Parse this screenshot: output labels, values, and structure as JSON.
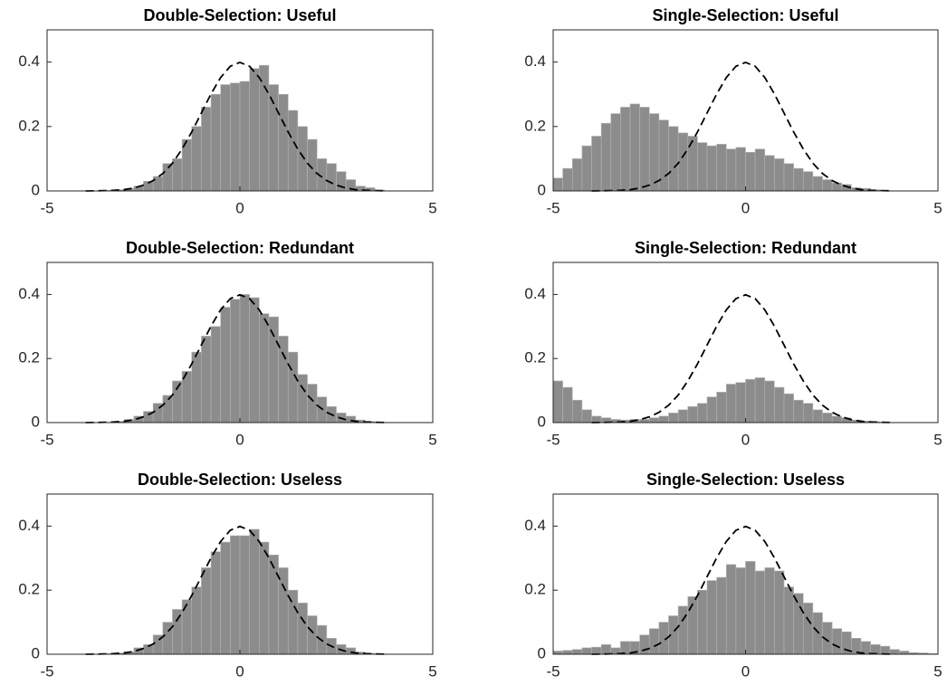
{
  "chart_data": [
    {
      "type": "histogram",
      "title": "Double-Selection: Useful",
      "color": "#8c8c8c",
      "bins": [
        -5,
        -4.75,
        -4.5,
        -4.25,
        -4,
        -3.75,
        -3.5,
        -3.25,
        -3,
        -2.75,
        -2.5,
        -2.25,
        -2,
        -1.75,
        -1.5,
        -1.25,
        -1,
        -0.75,
        -0.5,
        -0.25,
        0,
        0.25,
        0.5,
        0.75,
        1,
        1.25,
        1.5,
        1.75,
        2,
        2.25,
        2.5,
        2.75,
        3,
        3.25,
        3.5,
        3.75,
        4,
        4.25,
        4.5,
        4.75,
        5
      ],
      "values": [
        0,
        0,
        0,
        0,
        0,
        0,
        0.002,
        0.004,
        0.008,
        0.015,
        0.03,
        0.045,
        0.085,
        0.1,
        0.16,
        0.2,
        0.26,
        0.3,
        0.33,
        0.335,
        0.34,
        0.38,
        0.39,
        0.33,
        0.3,
        0.25,
        0.2,
        0.16,
        0.1,
        0.085,
        0.06,
        0.035,
        0.015,
        0.01,
        0.003,
        0,
        0,
        0,
        0,
        0
      ],
      "line": {
        "color": "#000000",
        "dashed": true,
        "x": [
          -4,
          -3.75,
          -3.5,
          -3.25,
          -3,
          -2.75,
          -2.5,
          -2.25,
          -2,
          -1.75,
          -1.5,
          -1.25,
          -1,
          -0.75,
          -0.5,
          -0.25,
          0,
          0.25,
          0.5,
          0.75,
          1,
          1.25,
          1.5,
          1.75,
          2,
          2.25,
          2.5,
          2.75,
          3,
          3.25,
          3.5,
          3.75
        ],
        "values": [
          0.0001,
          0.0004,
          0.001,
          0.002,
          0.004,
          0.009,
          0.018,
          0.032,
          0.054,
          0.086,
          0.13,
          0.183,
          0.242,
          0.301,
          0.352,
          0.387,
          0.399,
          0.387,
          0.352,
          0.301,
          0.242,
          0.183,
          0.13,
          0.086,
          0.054,
          0.032,
          0.018,
          0.009,
          0.004,
          0.002,
          0.001,
          0.0004
        ]
      },
      "xlim": [
        -5,
        5
      ],
      "xticks": [
        -5,
        0,
        5
      ],
      "ylim": [
        0,
        0.5
      ],
      "yticks": [
        0,
        0.2,
        0.4
      ]
    },
    {
      "type": "histogram",
      "title": "Single-Selection: Useful",
      "color": "#8c8c8c",
      "bins": [
        -5,
        -4.75,
        -4.5,
        -4.25,
        -4,
        -3.75,
        -3.5,
        -3.25,
        -3,
        -2.75,
        -2.5,
        -2.25,
        -2,
        -1.75,
        -1.5,
        -1.25,
        -1,
        -0.75,
        -0.5,
        -0.25,
        0,
        0.25,
        0.5,
        0.75,
        1,
        1.25,
        1.5,
        1.75,
        2,
        2.25,
        2.5,
        2.75,
        3,
        3.25,
        3.5,
        3.75,
        4,
        4.25,
        4.5,
        4.75,
        5
      ],
      "values": [
        0.04,
        0.07,
        0.1,
        0.14,
        0.17,
        0.21,
        0.24,
        0.26,
        0.27,
        0.26,
        0.24,
        0.22,
        0.2,
        0.18,
        0.17,
        0.15,
        0.14,
        0.145,
        0.13,
        0.135,
        0.12,
        0.13,
        0.11,
        0.1,
        0.085,
        0.07,
        0.06,
        0.045,
        0.035,
        0.025,
        0.02,
        0.01,
        0.008,
        0.004,
        0.002,
        0,
        0,
        0,
        0,
        0
      ],
      "line": {
        "color": "#000000",
        "dashed": true,
        "x": [
          -4,
          -3.75,
          -3.5,
          -3.25,
          -3,
          -2.75,
          -2.5,
          -2.25,
          -2,
          -1.75,
          -1.5,
          -1.25,
          -1,
          -0.75,
          -0.5,
          -0.25,
          0,
          0.25,
          0.5,
          0.75,
          1,
          1.25,
          1.5,
          1.75,
          2,
          2.25,
          2.5,
          2.75,
          3,
          3.25,
          3.5,
          3.75
        ],
        "values": [
          0.0001,
          0.0004,
          0.001,
          0.002,
          0.004,
          0.009,
          0.018,
          0.032,
          0.054,
          0.086,
          0.13,
          0.183,
          0.242,
          0.301,
          0.352,
          0.387,
          0.399,
          0.387,
          0.352,
          0.301,
          0.242,
          0.183,
          0.13,
          0.086,
          0.054,
          0.032,
          0.018,
          0.009,
          0.004,
          0.002,
          0.001,
          0.0004
        ]
      },
      "xlim": [
        -5,
        5
      ],
      "xticks": [
        -5,
        0,
        5
      ],
      "ylim": [
        0,
        0.5
      ],
      "yticks": [
        0,
        0.2,
        0.4
      ]
    },
    {
      "type": "histogram",
      "title": "Double-Selection: Redundant",
      "color": "#8c8c8c",
      "bins": [
        -5,
        -4.75,
        -4.5,
        -4.25,
        -4,
        -3.75,
        -3.5,
        -3.25,
        -3,
        -2.75,
        -2.5,
        -2.25,
        -2,
        -1.75,
        -1.5,
        -1.25,
        -1,
        -0.75,
        -0.5,
        -0.25,
        0,
        0.25,
        0.5,
        0.75,
        1,
        1.25,
        1.5,
        1.75,
        2,
        2.25,
        2.5,
        2.75,
        3,
        3.25,
        3.5,
        3.75,
        4,
        4.25,
        4.5,
        4.75,
        5
      ],
      "values": [
        0,
        0,
        0,
        0,
        0,
        0,
        0.001,
        0.004,
        0.01,
        0.02,
        0.035,
        0.06,
        0.085,
        0.13,
        0.16,
        0.22,
        0.27,
        0.3,
        0.36,
        0.385,
        0.4,
        0.39,
        0.34,
        0.33,
        0.27,
        0.22,
        0.15,
        0.12,
        0.08,
        0.05,
        0.03,
        0.02,
        0.008,
        0.004,
        0.001,
        0,
        0,
        0,
        0,
        0
      ],
      "line": {
        "color": "#000000",
        "dashed": true,
        "x": [
          -4,
          -3.75,
          -3.5,
          -3.25,
          -3,
          -2.75,
          -2.5,
          -2.25,
          -2,
          -1.75,
          -1.5,
          -1.25,
          -1,
          -0.75,
          -0.5,
          -0.25,
          0,
          0.25,
          0.5,
          0.75,
          1,
          1.25,
          1.5,
          1.75,
          2,
          2.25,
          2.5,
          2.75,
          3,
          3.25,
          3.5,
          3.75
        ],
        "values": [
          0.0001,
          0.0004,
          0.001,
          0.002,
          0.004,
          0.009,
          0.018,
          0.032,
          0.054,
          0.086,
          0.13,
          0.183,
          0.242,
          0.301,
          0.352,
          0.387,
          0.399,
          0.387,
          0.352,
          0.301,
          0.242,
          0.183,
          0.13,
          0.086,
          0.054,
          0.032,
          0.018,
          0.009,
          0.004,
          0.002,
          0.001,
          0.0004
        ]
      },
      "xlim": [
        -5,
        5
      ],
      "xticks": [
        -5,
        0,
        5
      ],
      "ylim": [
        0,
        0.5
      ],
      "yticks": [
        0,
        0.2,
        0.4
      ]
    },
    {
      "type": "histogram",
      "title": "Single-Selection: Redundant",
      "color": "#8c8c8c",
      "bins": [
        -5,
        -4.75,
        -4.5,
        -4.25,
        -4,
        -3.75,
        -3.5,
        -3.25,
        -3,
        -2.75,
        -2.5,
        -2.25,
        -2,
        -1.75,
        -1.5,
        -1.25,
        -1,
        -0.75,
        -0.5,
        -0.25,
        0,
        0.25,
        0.5,
        0.75,
        1,
        1.25,
        1.5,
        1.75,
        2,
        2.25,
        2.5,
        2.75,
        3,
        3.25,
        3.5,
        3.75,
        4,
        4.25,
        4.5,
        4.75,
        5
      ],
      "values": [
        0.13,
        0.11,
        0.07,
        0.04,
        0.02,
        0.015,
        0.01,
        0.008,
        0.01,
        0.01,
        0.015,
        0.02,
        0.03,
        0.04,
        0.05,
        0.06,
        0.08,
        0.095,
        0.12,
        0.125,
        0.135,
        0.14,
        0.13,
        0.11,
        0.09,
        0.07,
        0.06,
        0.04,
        0.03,
        0.02,
        0.015,
        0.008,
        0.005,
        0.003,
        0,
        0,
        0,
        0,
        0,
        0
      ],
      "line": {
        "color": "#000000",
        "dashed": true,
        "x": [
          -4,
          -3.75,
          -3.5,
          -3.25,
          -3,
          -2.75,
          -2.5,
          -2.25,
          -2,
          -1.75,
          -1.5,
          -1.25,
          -1,
          -0.75,
          -0.5,
          -0.25,
          0,
          0.25,
          0.5,
          0.75,
          1,
          1.25,
          1.5,
          1.75,
          2,
          2.25,
          2.5,
          2.75,
          3,
          3.25,
          3.5,
          3.75
        ],
        "values": [
          0.0001,
          0.0004,
          0.001,
          0.002,
          0.004,
          0.009,
          0.018,
          0.032,
          0.054,
          0.086,
          0.13,
          0.183,
          0.242,
          0.301,
          0.352,
          0.387,
          0.399,
          0.387,
          0.352,
          0.301,
          0.242,
          0.183,
          0.13,
          0.086,
          0.054,
          0.032,
          0.018,
          0.009,
          0.004,
          0.002,
          0.001,
          0.0004
        ]
      },
      "xlim": [
        -5,
        5
      ],
      "xticks": [
        -5,
        0,
        5
      ],
      "ylim": [
        0,
        0.5
      ],
      "yticks": [
        0,
        0.2,
        0.4
      ]
    },
    {
      "type": "histogram",
      "title": "Double-Selection: Useless",
      "color": "#8c8c8c",
      "bins": [
        -5,
        -4.75,
        -4.5,
        -4.25,
        -4,
        -3.75,
        -3.5,
        -3.25,
        -3,
        -2.75,
        -2.5,
        -2.25,
        -2,
        -1.75,
        -1.5,
        -1.25,
        -1,
        -0.75,
        -0.5,
        -0.25,
        0,
        0.25,
        0.5,
        0.75,
        1,
        1.25,
        1.5,
        1.75,
        2,
        2.25,
        2.5,
        2.75,
        3,
        3.25,
        3.5,
        3.75,
        4,
        4.25,
        4.5,
        4.75,
        5
      ],
      "values": [
        0,
        0,
        0,
        0,
        0,
        0,
        0.002,
        0.004,
        0.008,
        0.02,
        0.03,
        0.06,
        0.1,
        0.14,
        0.17,
        0.21,
        0.27,
        0.32,
        0.35,
        0.37,
        0.37,
        0.39,
        0.35,
        0.31,
        0.27,
        0.2,
        0.16,
        0.12,
        0.09,
        0.05,
        0.03,
        0.02,
        0.007,
        0.003,
        0.001,
        0,
        0,
        0,
        0,
        0
      ],
      "line": {
        "color": "#000000",
        "dashed": true,
        "x": [
          -4,
          -3.75,
          -3.5,
          -3.25,
          -3,
          -2.75,
          -2.5,
          -2.25,
          -2,
          -1.75,
          -1.5,
          -1.25,
          -1,
          -0.75,
          -0.5,
          -0.25,
          0,
          0.25,
          0.5,
          0.75,
          1,
          1.25,
          1.5,
          1.75,
          2,
          2.25,
          2.5,
          2.75,
          3,
          3.25,
          3.5,
          3.75
        ],
        "values": [
          0.0001,
          0.0004,
          0.001,
          0.002,
          0.004,
          0.009,
          0.018,
          0.032,
          0.054,
          0.086,
          0.13,
          0.183,
          0.242,
          0.301,
          0.352,
          0.387,
          0.399,
          0.387,
          0.352,
          0.301,
          0.242,
          0.183,
          0.13,
          0.086,
          0.054,
          0.032,
          0.018,
          0.009,
          0.004,
          0.002,
          0.001,
          0.0004
        ]
      },
      "xlim": [
        -5,
        5
      ],
      "xticks": [
        -5,
        0,
        5
      ],
      "ylim": [
        0,
        0.5
      ],
      "yticks": [
        0,
        0.2,
        0.4
      ]
    },
    {
      "type": "histogram",
      "title": "Single-Selection: Useless",
      "color": "#8c8c8c",
      "bins": [
        -5,
        -4.75,
        -4.5,
        -4.25,
        -4,
        -3.75,
        -3.5,
        -3.25,
        -3,
        -2.75,
        -2.5,
        -2.25,
        -2,
        -1.75,
        -1.5,
        -1.25,
        -1,
        -0.75,
        -0.5,
        -0.25,
        0,
        0.25,
        0.5,
        0.75,
        1,
        1.25,
        1.5,
        1.75,
        2,
        2.25,
        2.5,
        2.75,
        3,
        3.25,
        3.5,
        3.75,
        4,
        4.25,
        4.5,
        4.75,
        5
      ],
      "values": [
        0.01,
        0.012,
        0.015,
        0.02,
        0.022,
        0.03,
        0.02,
        0.04,
        0.04,
        0.06,
        0.08,
        0.1,
        0.12,
        0.15,
        0.18,
        0.2,
        0.23,
        0.24,
        0.28,
        0.27,
        0.29,
        0.26,
        0.27,
        0.26,
        0.21,
        0.19,
        0.16,
        0.13,
        0.1,
        0.08,
        0.07,
        0.05,
        0.04,
        0.03,
        0.025,
        0.015,
        0.01,
        0.005,
        0.004,
        0.002
      ],
      "line": {
        "color": "#000000",
        "dashed": true,
        "x": [
          -4,
          -3.75,
          -3.5,
          -3.25,
          -3,
          -2.75,
          -2.5,
          -2.25,
          -2,
          -1.75,
          -1.5,
          -1.25,
          -1,
          -0.75,
          -0.5,
          -0.25,
          0,
          0.25,
          0.5,
          0.75,
          1,
          1.25,
          1.5,
          1.75,
          2,
          2.25,
          2.5,
          2.75,
          3,
          3.25,
          3.5,
          3.75
        ],
        "values": [
          0.0001,
          0.0004,
          0.001,
          0.002,
          0.004,
          0.009,
          0.018,
          0.032,
          0.054,
          0.086,
          0.13,
          0.183,
          0.242,
          0.301,
          0.352,
          0.387,
          0.399,
          0.387,
          0.352,
          0.301,
          0.242,
          0.183,
          0.13,
          0.086,
          0.054,
          0.032,
          0.018,
          0.009,
          0.004,
          0.002,
          0.001,
          0.0004
        ]
      },
      "xlim": [
        -5,
        5
      ],
      "xticks": [
        -5,
        0,
        5
      ],
      "ylim": [
        0,
        0.5
      ],
      "yticks": [
        0,
        0.2,
        0.4
      ]
    }
  ]
}
